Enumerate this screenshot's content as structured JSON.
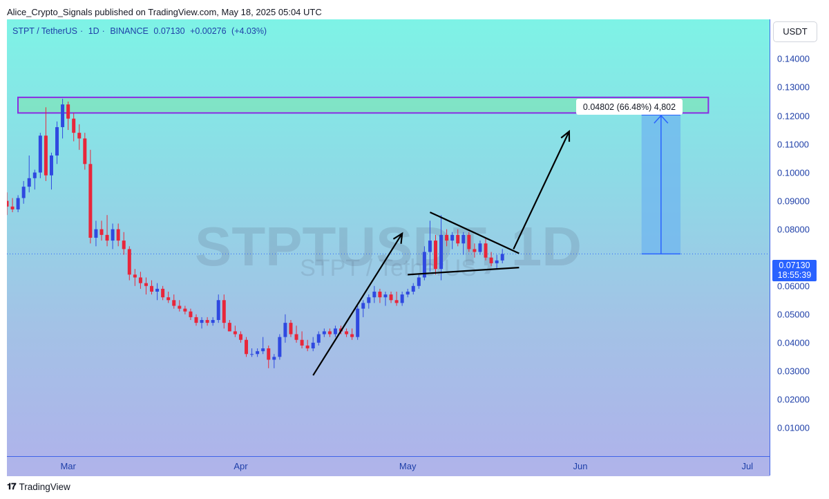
{
  "publish_line": "Alice_Crypto_Signals published on TradingView.com, May 18, 2025 05:04 UTC",
  "symbol": {
    "pair": "STPT / TetherUS",
    "interval": "1D",
    "exchange": "BINANCE",
    "price": "0.07130",
    "change": "+0.00276",
    "change_pct": "(+4.03%)"
  },
  "watermark": {
    "main": "STPTUSDT, 1D",
    "sub": "STPT / TetherUS"
  },
  "axis": {
    "currency": "USDT",
    "price_ticks": [
      "0.14000",
      "0.13000",
      "0.12000",
      "0.11000",
      "0.10000",
      "0.09000",
      "0.08000",
      "0.07000",
      "0.06000",
      "0.05000",
      "0.04000",
      "0.03000",
      "0.02000",
      "0.01000"
    ],
    "current_price": "0.07130",
    "countdown": "18:55:39",
    "months": [
      "Mar",
      "Apr",
      "May",
      "Jun",
      "Jul"
    ]
  },
  "measure_label": "0.04802 (66.48%) 4,802",
  "footer": {
    "brand": "TradingView",
    "logo_icon": "tradingview-logo-icon"
  },
  "colors": {
    "up": "#2f49e0",
    "down": "#e8263a",
    "accent": "#2962ff",
    "zone_fill": "#7fe3c0",
    "zone_border": "#8a2be2",
    "projection": "#6fb5ef"
  },
  "chart_data": {
    "type": "candlestick",
    "interval": "1D",
    "x_range": [
      "2025-02-18",
      "2025-07-05"
    ],
    "ylim": [
      0.0,
      0.154
    ],
    "candles": [
      {
        "d": "2025-02-18",
        "o": 0.09,
        "h": 0.093,
        "l": 0.085,
        "c": 0.088
      },
      {
        "d": "2025-02-19",
        "o": 0.088,
        "h": 0.091,
        "l": 0.086,
        "c": 0.087
      },
      {
        "d": "2025-02-20",
        "o": 0.087,
        "h": 0.092,
        "l": 0.086,
        "c": 0.091
      },
      {
        "d": "2025-02-21",
        "o": 0.091,
        "h": 0.097,
        "l": 0.089,
        "c": 0.095
      },
      {
        "d": "2025-02-22",
        "o": 0.095,
        "h": 0.106,
        "l": 0.093,
        "c": 0.098
      },
      {
        "d": "2025-02-23",
        "o": 0.098,
        "h": 0.101,
        "l": 0.094,
        "c": 0.1
      },
      {
        "d": "2025-02-24",
        "o": 0.1,
        "h": 0.114,
        "l": 0.098,
        "c": 0.113
      },
      {
        "d": "2025-02-25",
        "o": 0.113,
        "h": 0.123,
        "l": 0.097,
        "c": 0.099
      },
      {
        "d": "2025-02-26",
        "o": 0.099,
        "h": 0.107,
        "l": 0.094,
        "c": 0.106
      },
      {
        "d": "2025-02-27",
        "o": 0.106,
        "h": 0.118,
        "l": 0.103,
        "c": 0.116
      },
      {
        "d": "2025-02-28",
        "o": 0.116,
        "h": 0.126,
        "l": 0.112,
        "c": 0.124
      },
      {
        "d": "2025-03-01",
        "o": 0.124,
        "h": 0.125,
        "l": 0.115,
        "c": 0.119
      },
      {
        "d": "2025-03-02",
        "o": 0.119,
        "h": 0.121,
        "l": 0.111,
        "c": 0.114
      },
      {
        "d": "2025-03-03",
        "o": 0.114,
        "h": 0.117,
        "l": 0.108,
        "c": 0.112
      },
      {
        "d": "2025-03-04",
        "o": 0.112,
        "h": 0.114,
        "l": 0.101,
        "c": 0.103
      },
      {
        "d": "2025-03-05",
        "o": 0.103,
        "h": 0.108,
        "l": 0.075,
        "c": 0.077
      },
      {
        "d": "2025-03-06",
        "o": 0.077,
        "h": 0.083,
        "l": 0.074,
        "c": 0.08
      },
      {
        "d": "2025-03-07",
        "o": 0.08,
        "h": 0.083,
        "l": 0.076,
        "c": 0.078
      },
      {
        "d": "2025-03-08",
        "o": 0.078,
        "h": 0.085,
        "l": 0.074,
        "c": 0.076
      },
      {
        "d": "2025-03-09",
        "o": 0.076,
        "h": 0.082,
        "l": 0.073,
        "c": 0.08
      },
      {
        "d": "2025-03-10",
        "o": 0.08,
        "h": 0.082,
        "l": 0.074,
        "c": 0.076
      },
      {
        "d": "2025-03-11",
        "o": 0.076,
        "h": 0.079,
        "l": 0.071,
        "c": 0.073
      },
      {
        "d": "2025-03-12",
        "o": 0.073,
        "h": 0.074,
        "l": 0.062,
        "c": 0.064
      },
      {
        "d": "2025-03-13",
        "o": 0.064,
        "h": 0.066,
        "l": 0.06,
        "c": 0.063
      },
      {
        "d": "2025-03-14",
        "o": 0.063,
        "h": 0.065,
        "l": 0.059,
        "c": 0.061
      },
      {
        "d": "2025-03-15",
        "o": 0.061,
        "h": 0.063,
        "l": 0.057,
        "c": 0.06
      },
      {
        "d": "2025-03-16",
        "o": 0.06,
        "h": 0.062,
        "l": 0.057,
        "c": 0.058
      },
      {
        "d": "2025-03-17",
        "o": 0.058,
        "h": 0.061,
        "l": 0.055,
        "c": 0.059
      },
      {
        "d": "2025-03-18",
        "o": 0.059,
        "h": 0.06,
        "l": 0.055,
        "c": 0.056
      },
      {
        "d": "2025-03-19",
        "o": 0.056,
        "h": 0.058,
        "l": 0.054,
        "c": 0.055
      },
      {
        "d": "2025-03-20",
        "o": 0.055,
        "h": 0.057,
        "l": 0.052,
        "c": 0.053
      },
      {
        "d": "2025-03-21",
        "o": 0.053,
        "h": 0.055,
        "l": 0.051,
        "c": 0.052
      },
      {
        "d": "2025-03-22",
        "o": 0.052,
        "h": 0.053,
        "l": 0.05,
        "c": 0.051
      },
      {
        "d": "2025-03-23",
        "o": 0.051,
        "h": 0.052,
        "l": 0.048,
        "c": 0.049
      },
      {
        "d": "2025-03-24",
        "o": 0.049,
        "h": 0.05,
        "l": 0.046,
        "c": 0.047
      },
      {
        "d": "2025-03-25",
        "o": 0.047,
        "h": 0.049,
        "l": 0.045,
        "c": 0.048
      },
      {
        "d": "2025-03-26",
        "o": 0.048,
        "h": 0.049,
        "l": 0.046,
        "c": 0.047
      },
      {
        "d": "2025-03-27",
        "o": 0.047,
        "h": 0.049,
        "l": 0.046,
        "c": 0.048
      },
      {
        "d": "2025-03-28",
        "o": 0.048,
        "h": 0.057,
        "l": 0.047,
        "c": 0.055
      },
      {
        "d": "2025-03-29",
        "o": 0.055,
        "h": 0.057,
        "l": 0.045,
        "c": 0.047
      },
      {
        "d": "2025-03-30",
        "o": 0.047,
        "h": 0.048,
        "l": 0.044,
        "c": 0.044
      },
      {
        "d": "2025-03-31",
        "o": 0.044,
        "h": 0.046,
        "l": 0.042,
        "c": 0.043
      },
      {
        "d": "2025-04-01",
        "o": 0.043,
        "h": 0.044,
        "l": 0.04,
        "c": 0.041
      },
      {
        "d": "2025-04-02",
        "o": 0.041,
        "h": 0.042,
        "l": 0.035,
        "c": 0.036
      },
      {
        "d": "2025-04-03",
        "o": 0.036,
        "h": 0.038,
        "l": 0.035,
        "c": 0.036
      },
      {
        "d": "2025-04-04",
        "o": 0.036,
        "h": 0.038,
        "l": 0.035,
        "c": 0.037
      },
      {
        "d": "2025-04-05",
        "o": 0.037,
        "h": 0.042,
        "l": 0.036,
        "c": 0.038
      },
      {
        "d": "2025-04-06",
        "o": 0.038,
        "h": 0.039,
        "l": 0.031,
        "c": 0.034
      },
      {
        "d": "2025-04-07",
        "o": 0.034,
        "h": 0.036,
        "l": 0.031,
        "c": 0.035
      },
      {
        "d": "2025-04-08",
        "o": 0.035,
        "h": 0.043,
        "l": 0.034,
        "c": 0.042
      },
      {
        "d": "2025-04-09",
        "o": 0.042,
        "h": 0.05,
        "l": 0.04,
        "c": 0.047
      },
      {
        "d": "2025-04-10",
        "o": 0.047,
        "h": 0.048,
        "l": 0.042,
        "c": 0.043
      },
      {
        "d": "2025-04-11",
        "o": 0.043,
        "h": 0.046,
        "l": 0.04,
        "c": 0.041
      },
      {
        "d": "2025-04-12",
        "o": 0.041,
        "h": 0.044,
        "l": 0.038,
        "c": 0.039
      },
      {
        "d": "2025-04-13",
        "o": 0.039,
        "h": 0.041,
        "l": 0.037,
        "c": 0.038
      },
      {
        "d": "2025-04-14",
        "o": 0.038,
        "h": 0.042,
        "l": 0.037,
        "c": 0.04
      },
      {
        "d": "2025-04-15",
        "o": 0.04,
        "h": 0.044,
        "l": 0.039,
        "c": 0.043
      },
      {
        "d": "2025-04-16",
        "o": 0.043,
        "h": 0.045,
        "l": 0.042,
        "c": 0.044
      },
      {
        "d": "2025-04-17",
        "o": 0.044,
        "h": 0.045,
        "l": 0.042,
        "c": 0.043
      },
      {
        "d": "2025-04-18",
        "o": 0.043,
        "h": 0.046,
        "l": 0.042,
        "c": 0.045
      },
      {
        "d": "2025-04-19",
        "o": 0.045,
        "h": 0.046,
        "l": 0.043,
        "c": 0.044
      },
      {
        "d": "2025-04-20",
        "o": 0.044,
        "h": 0.045,
        "l": 0.042,
        "c": 0.043
      },
      {
        "d": "2025-04-21",
        "o": 0.043,
        "h": 0.045,
        "l": 0.041,
        "c": 0.042
      },
      {
        "d": "2025-04-22",
        "o": 0.042,
        "h": 0.053,
        "l": 0.041,
        "c": 0.052
      },
      {
        "d": "2025-04-23",
        "o": 0.052,
        "h": 0.055,
        "l": 0.049,
        "c": 0.054
      },
      {
        "d": "2025-04-24",
        "o": 0.054,
        "h": 0.057,
        "l": 0.052,
        "c": 0.056
      },
      {
        "d": "2025-04-25",
        "o": 0.056,
        "h": 0.06,
        "l": 0.054,
        "c": 0.058
      },
      {
        "d": "2025-04-26",
        "o": 0.058,
        "h": 0.059,
        "l": 0.054,
        "c": 0.056
      },
      {
        "d": "2025-04-27",
        "o": 0.056,
        "h": 0.058,
        "l": 0.053,
        "c": 0.057
      },
      {
        "d": "2025-04-28",
        "o": 0.057,
        "h": 0.058,
        "l": 0.054,
        "c": 0.055
      },
      {
        "d": "2025-04-29",
        "o": 0.055,
        "h": 0.058,
        "l": 0.053,
        "c": 0.054
      },
      {
        "d": "2025-04-30",
        "o": 0.054,
        "h": 0.058,
        "l": 0.053,
        "c": 0.057
      },
      {
        "d": "2025-05-01",
        "o": 0.057,
        "h": 0.059,
        "l": 0.056,
        "c": 0.058
      },
      {
        "d": "2025-05-02",
        "o": 0.058,
        "h": 0.061,
        "l": 0.057,
        "c": 0.06
      },
      {
        "d": "2025-05-03",
        "o": 0.06,
        "h": 0.064,
        "l": 0.059,
        "c": 0.063
      },
      {
        "d": "2025-05-04",
        "o": 0.063,
        "h": 0.074,
        "l": 0.062,
        "c": 0.072
      },
      {
        "d": "2025-05-05",
        "o": 0.072,
        "h": 0.083,
        "l": 0.065,
        "c": 0.076
      },
      {
        "d": "2025-05-06",
        "o": 0.076,
        "h": 0.078,
        "l": 0.064,
        "c": 0.066
      },
      {
        "d": "2025-05-07",
        "o": 0.066,
        "h": 0.085,
        "l": 0.062,
        "c": 0.078
      },
      {
        "d": "2025-05-08",
        "o": 0.078,
        "h": 0.08,
        "l": 0.074,
        "c": 0.076
      },
      {
        "d": "2025-05-09",
        "o": 0.076,
        "h": 0.079,
        "l": 0.073,
        "c": 0.078
      },
      {
        "d": "2025-05-10",
        "o": 0.078,
        "h": 0.08,
        "l": 0.074,
        "c": 0.075
      },
      {
        "d": "2025-05-11",
        "o": 0.075,
        "h": 0.079,
        "l": 0.071,
        "c": 0.078
      },
      {
        "d": "2025-05-12",
        "o": 0.078,
        "h": 0.079,
        "l": 0.072,
        "c": 0.073
      },
      {
        "d": "2025-05-13",
        "o": 0.073,
        "h": 0.075,
        "l": 0.07,
        "c": 0.072
      },
      {
        "d": "2025-05-14",
        "o": 0.072,
        "h": 0.076,
        "l": 0.071,
        "c": 0.075
      },
      {
        "d": "2025-05-15",
        "o": 0.075,
        "h": 0.077,
        "l": 0.069,
        "c": 0.07
      },
      {
        "d": "2025-05-16",
        "o": 0.07,
        "h": 0.072,
        "l": 0.067,
        "c": 0.068
      },
      {
        "d": "2025-05-17",
        "o": 0.068,
        "h": 0.071,
        "l": 0.066,
        "c": 0.069
      },
      {
        "d": "2025-05-18",
        "o": 0.069,
        "h": 0.073,
        "l": 0.068,
        "c": 0.0713
      }
    ],
    "resistance_zone": {
      "x1": "2025-02-18",
      "x2": "2025-06-24",
      "y1": 0.121,
      "y2": 0.1265
    },
    "projection": {
      "x1": "2025-06-12",
      "x2": "2025-06-19",
      "y_from": 0.0713,
      "y_to": 0.1203
    },
    "annotation_lines": [
      {
        "name": "impulse-arrow-1",
        "x1": "2025-04-14",
        "y1": 0.0285,
        "x2": "2025-04-30",
        "y2": 0.0785,
        "arrow": true
      },
      {
        "name": "triangle-upper-line",
        "x1": "2025-05-05",
        "y1": 0.086,
        "x2": "2025-05-21",
        "y2": 0.0715,
        "arrow": false
      },
      {
        "name": "triangle-lower-line",
        "x1": "2025-05-01",
        "y1": 0.064,
        "x2": "2025-05-21",
        "y2": 0.0665,
        "arrow": false
      },
      {
        "name": "breakout-arrow",
        "x1": "2025-05-20",
        "y1": 0.073,
        "x2": "2025-05-30",
        "y2": 0.1145,
        "arrow": true
      }
    ]
  }
}
